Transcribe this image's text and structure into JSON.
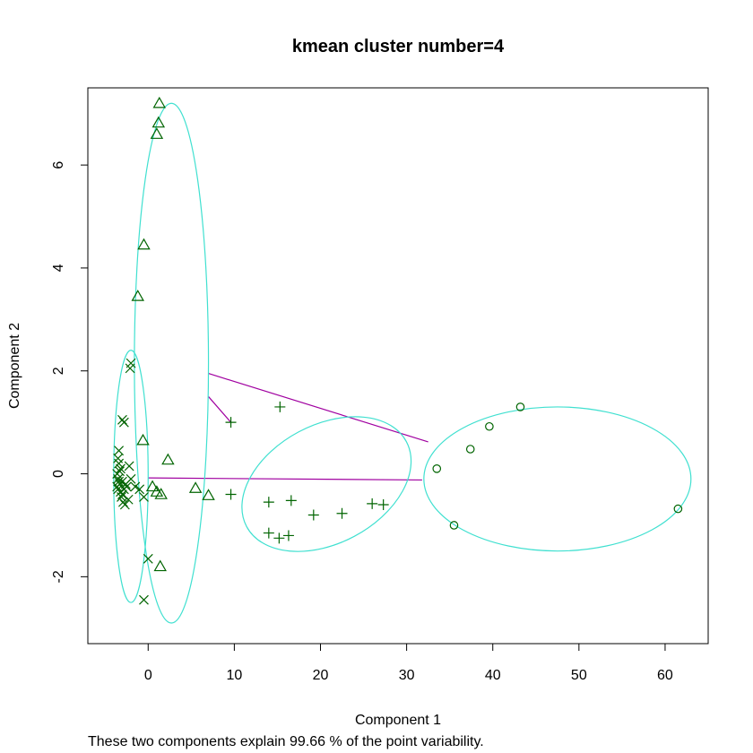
{
  "chart_data": {
    "type": "scatter",
    "title": "kmean cluster number=4",
    "xlabel": "Component 1",
    "ylabel": "Component 2",
    "subtitle": "These two components explain 99.66 % of the point variability.",
    "xlim": [
      -7,
      65
    ],
    "ylim": [
      -3.3,
      7.5
    ],
    "xticks": [
      0,
      10,
      20,
      30,
      40,
      50,
      60
    ],
    "yticks": [
      -2,
      0,
      2,
      4,
      6
    ],
    "grid": false,
    "point_color": "#006400",
    "ellipse_color": "#40E0D0",
    "line_color": "#A000A0",
    "clusters": [
      {
        "id": 1,
        "marker": "circle",
        "points": [
          [
            33.5,
            0.1
          ],
          [
            37.4,
            0.48
          ],
          [
            39.6,
            0.92
          ],
          [
            43.2,
            1.3
          ],
          [
            35.5,
            -1.0
          ],
          [
            61.5,
            -0.68
          ]
        ],
        "ellipse": {
          "cx": 47.5,
          "cy": -0.1,
          "rx": 15.5,
          "ry": 1.4,
          "angle": 0
        }
      },
      {
        "id": 2,
        "marker": "x",
        "points": [
          [
            -2.0,
            2.15
          ],
          [
            -2.1,
            2.05
          ],
          [
            -3.0,
            1.05
          ],
          [
            -2.8,
            1.0
          ],
          [
            -3.4,
            0.45
          ],
          [
            -3.5,
            0.3
          ],
          [
            -3.4,
            0.2
          ],
          [
            -3.2,
            0.1
          ],
          [
            -3.6,
            0.0
          ],
          [
            -3.5,
            -0.1
          ],
          [
            -3.4,
            -0.15
          ],
          [
            -3.3,
            -0.2
          ],
          [
            -3.6,
            -0.25
          ],
          [
            -3.5,
            -0.3
          ],
          [
            -3.2,
            -0.35
          ],
          [
            -3.0,
            -0.4
          ],
          [
            -3.1,
            -0.45
          ],
          [
            -2.8,
            -0.3
          ],
          [
            -2.6,
            -0.2
          ],
          [
            -2.2,
            0.15
          ],
          [
            -2.0,
            -0.1
          ],
          [
            -1.5,
            -0.25
          ],
          [
            -1.0,
            -0.3
          ],
          [
            -0.5,
            -0.45
          ],
          [
            -2.9,
            -0.55
          ],
          [
            -2.7,
            -0.6
          ],
          [
            -2.3,
            -0.5
          ],
          [
            0.0,
            -1.65
          ],
          [
            -0.5,
            -2.45
          ],
          [
            -3.0,
            -0.15
          ],
          [
            -2.5,
            -0.25
          ],
          [
            -3.3,
            0.05
          ]
        ],
        "ellipse": {
          "cx": -2.0,
          "cy": -0.05,
          "rx": 2.0,
          "ry": 2.45,
          "angle": 0
        }
      },
      {
        "id": 3,
        "marker": "triangle",
        "points": [
          [
            1.3,
            7.2
          ],
          [
            1.2,
            6.82
          ],
          [
            1.0,
            6.6
          ],
          [
            -0.5,
            4.45
          ],
          [
            -1.2,
            3.45
          ],
          [
            2.3,
            0.27
          ],
          [
            -0.6,
            0.65
          ],
          [
            0.5,
            -0.25
          ],
          [
            1.0,
            -0.35
          ],
          [
            1.5,
            -0.4
          ],
          [
            5.5,
            -0.28
          ],
          [
            7.0,
            -0.42
          ],
          [
            1.4,
            -1.8
          ]
        ],
        "ellipse": {
          "cx": 2.7,
          "cy": 2.15,
          "rx": 4.3,
          "ry": 5.05,
          "angle": 0
        }
      },
      {
        "id": 4,
        "marker": "plus",
        "points": [
          [
            15.3,
            1.3
          ],
          [
            9.6,
            1.0
          ],
          [
            9.6,
            -0.4
          ],
          [
            14.0,
            -0.55
          ],
          [
            16.6,
            -0.52
          ],
          [
            19.2,
            -0.8
          ],
          [
            22.5,
            -0.77
          ],
          [
            26.0,
            -0.58
          ],
          [
            27.3,
            -0.6
          ],
          [
            14.0,
            -1.15
          ],
          [
            15.2,
            -1.25
          ],
          [
            16.3,
            -1.2
          ]
        ],
        "ellipse": {
          "cx": 20.7,
          "cy": -0.2,
          "rx": 10.5,
          "ry": 1.15,
          "angle": 28
        }
      }
    ],
    "connecting_lines": [
      [
        [
          7.0,
          1.95
        ],
        [
          32.5,
          0.62
        ]
      ],
      [
        [
          7.0,
          1.5
        ],
        [
          9.6,
          1.0
        ]
      ],
      [
        [
          0.0,
          -0.08
        ],
        [
          31.8,
          -0.12
        ]
      ]
    ]
  }
}
